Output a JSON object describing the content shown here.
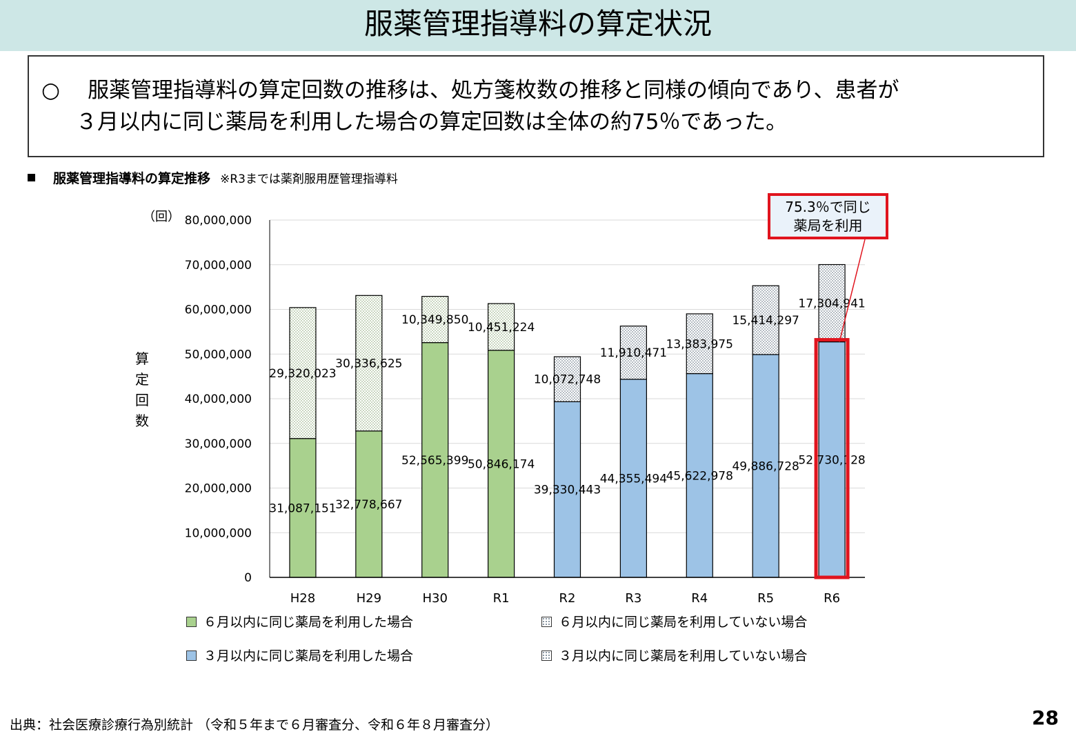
{
  "title": "服薬管理指導料の算定状況",
  "summary": {
    "bullet": "○",
    "line1": "服薬管理指導料の算定回数の推移は、処方箋枚数の推移と同様の傾向であり、患者が",
    "line2": "３月以内に同じ薬局を利用した場合の算定回数は全体の約75％であった。"
  },
  "section": {
    "heading": "服薬管理指導料の算定推移",
    "note": "※R3までは薬剤服用歴管理指導料"
  },
  "callout": {
    "line1": "75.3％で同じ",
    "line2": "薬局を利用"
  },
  "legend": {
    "green": "６月以内に同じ薬局を利用した場合",
    "green_dotted": "６月以内に同じ薬局を利用していない場合",
    "blue": "３月以内に同じ薬局を利用した場合",
    "blue_dotted": "３月以内に同じ薬局を利用していない場合"
  },
  "colors": {
    "green": "#a9d18e",
    "blue": "#9dc3e6",
    "dot_green": "#7f9f6a",
    "dot_blue": "#5b6b7b",
    "highlight": "#e0141e",
    "title_bg": "#cde7e6"
  },
  "chart_data": {
    "type": "bar",
    "stacked": true,
    "categories": [
      "H28",
      "H29",
      "H30",
      "R1",
      "R2",
      "R3",
      "R4",
      "R5",
      "R6"
    ],
    "series": [
      {
        "name": "同じ薬局を利用した場合",
        "values": [
          31087151,
          32778667,
          52565399,
          50846174,
          39330443,
          44355494,
          45622978,
          49886728,
          52730128
        ]
      },
      {
        "name": "同じ薬局を利用していない場合",
        "values": [
          29320023,
          30336625,
          10349850,
          10451224,
          10072748,
          11910471,
          13383975,
          15414297,
          17304941
        ]
      }
    ],
    "bottom_labels": [
      "31,087,151",
      "32,778,667",
      "52,565,399",
      "50,846,174",
      "39,330,443",
      "44,355,494",
      "45,622,978",
      "49,886,728",
      "52,730,128"
    ],
    "top_labels": [
      "29,320,023",
      "30,336,625",
      "10,349,850",
      "10,451,224",
      "10,072,748",
      "11,910,471",
      "13,383,975",
      "15,414,297",
      "17,304,941"
    ],
    "period_type": [
      "6m",
      "6m",
      "6m",
      "6m",
      "3m",
      "3m",
      "3m",
      "3m",
      "3m"
    ],
    "highlight_category": "R6",
    "y_unit": "（回）",
    "ylabel": "算定回数",
    "ylim": [
      0,
      80000000
    ],
    "yticks": [
      0,
      10000000,
      20000000,
      30000000,
      40000000,
      50000000,
      60000000,
      70000000,
      80000000
    ],
    "ytick_labels": [
      "0",
      "10,000,000",
      "20,000,000",
      "30,000,000",
      "40,000,000",
      "50,000,000",
      "60,000,000",
      "70,000,000",
      "80,000,000"
    ],
    "grid": true
  },
  "source": "出典：社会医療診療行為別統計 （令和５年まで６月審査分、令和６年８月審査分）",
  "page_number": "28"
}
